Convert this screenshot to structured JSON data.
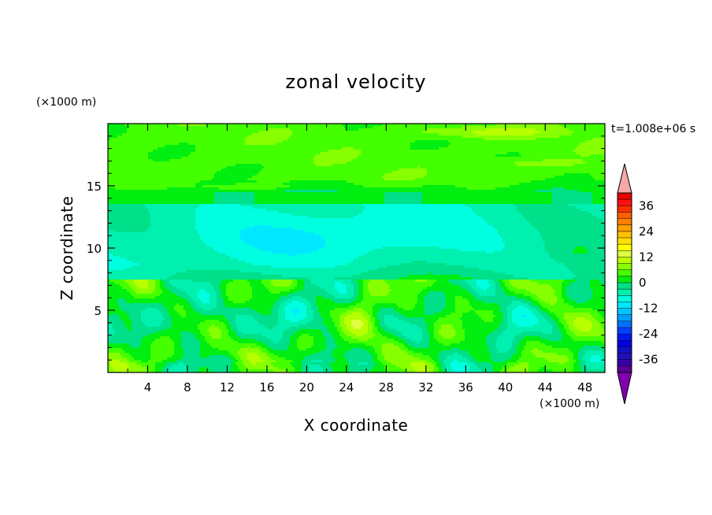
{
  "chart_data": {
    "type": "heatmap",
    "title": "zonal velocity",
    "xlabel": "X coordinate",
    "ylabel": "Z coordinate",
    "x_unit": "(×1000 m)",
    "y_unit": "(×1000 m)",
    "time_label": "t=1.008e+06 s",
    "xlim": [
      0,
      50
    ],
    "ylim": [
      0,
      20
    ],
    "x_ticks": [
      4,
      8,
      12,
      16,
      20,
      24,
      28,
      32,
      36,
      40,
      44,
      48
    ],
    "y_ticks": [
      5,
      10,
      15
    ],
    "colorbar": {
      "levels": [
        -42,
        -39,
        -36,
        -33,
        -30,
        -27,
        -24,
        -21,
        -18,
        -15,
        -12,
        -9,
        -6,
        -3,
        0,
        3,
        6,
        9,
        12,
        15,
        18,
        21,
        24,
        27,
        30,
        33,
        36,
        39,
        42
      ],
      "colors": [
        "#5a0090",
        "#3a00a8",
        "#2010b8",
        "#1010c8",
        "#0000dc",
        "#0018ee",
        "#0040ff",
        "#0070ff",
        "#00a0ff",
        "#00c8ff",
        "#00e8ff",
        "#00ffe0",
        "#00f0b0",
        "#00e08a",
        "#00ee10",
        "#44ff00",
        "#88ff00",
        "#b8ff00",
        "#e0ff40",
        "#ffff00",
        "#ffe000",
        "#ffc000",
        "#ffa000",
        "#ff8000",
        "#ff6000",
        "#ff3000",
        "#ff1010",
        "#e80000"
      ],
      "under_color": "#8000b0",
      "over_color": "#f4a8a8",
      "tick_labels": [
        "36",
        "24",
        "12",
        "0",
        "-12",
        "-24",
        "-36"
      ],
      "tick_values": [
        36,
        24,
        12,
        0,
        -12,
        -24,
        -36
      ]
    }
  }
}
